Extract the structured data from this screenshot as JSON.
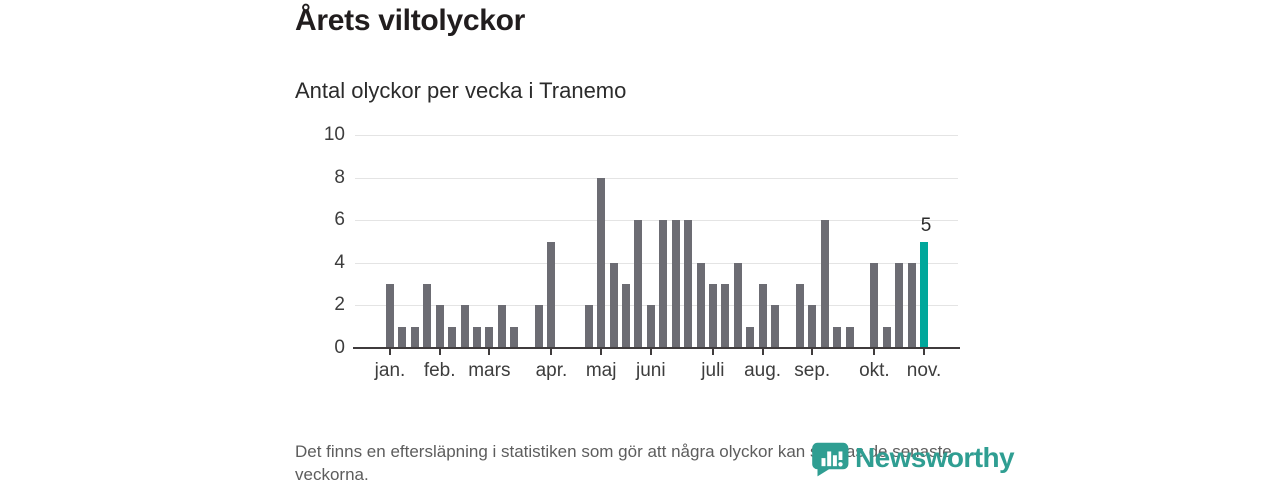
{
  "header": {
    "title": "Årets viltolyckor",
    "subtitle": "Antal olyckor per vecka i Tranemo"
  },
  "chart_data": {
    "type": "bar",
    "title": "Årets viltolyckor",
    "subtitle": "Antal olyckor per vecka i Tranemo",
    "x_unit": "vecka",
    "values": [
      3,
      1,
      1,
      3,
      2,
      1,
      2,
      1,
      1,
      2,
      1,
      0,
      2,
      5,
      0,
      0,
      2,
      8,
      4,
      3,
      6,
      2,
      6,
      6,
      6,
      4,
      3,
      3,
      4,
      1,
      3,
      2,
      0,
      3,
      2,
      6,
      1,
      1,
      0,
      4,
      1,
      4,
      4,
      5
    ],
    "highlight_index": 43,
    "highlight_label": "5",
    "y_ticks": [
      0,
      2,
      4,
      6,
      8,
      10
    ],
    "ylim": [
      0,
      10
    ],
    "grid": true,
    "x_month_labels": [
      {
        "label": "jan.",
        "slot": 0
      },
      {
        "label": "feb.",
        "slot": 4
      },
      {
        "label": "mars",
        "slot": 8
      },
      {
        "label": "apr.",
        "slot": 13
      },
      {
        "label": "maj",
        "slot": 17
      },
      {
        "label": "juni",
        "slot": 21
      },
      {
        "label": "juli",
        "slot": 26
      },
      {
        "label": "aug.",
        "slot": 30
      },
      {
        "label": "sep.",
        "slot": 34
      },
      {
        "label": "okt.",
        "slot": 39
      },
      {
        "label": "nov.",
        "slot": 43
      }
    ],
    "colors": {
      "bar": "#6c6c73",
      "highlight": "#00a79b",
      "grid": "#e4e4e4",
      "axis": "#3f3b3c"
    }
  },
  "footer": {
    "note": "Det finns en eftersläpning i statistiken som gör att några olyckor kan saknas de senaste veckorna."
  },
  "branding": {
    "name": "Newsworthy",
    "color": "#2f9e92"
  }
}
